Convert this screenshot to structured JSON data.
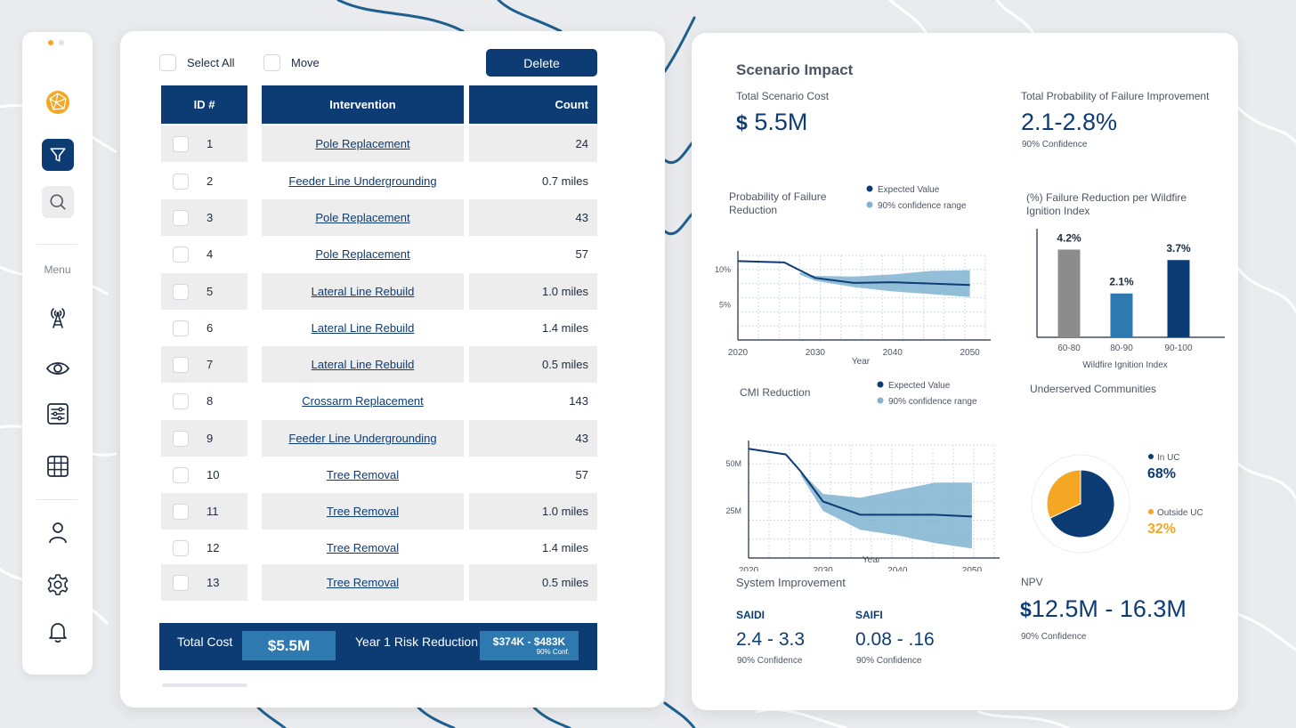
{
  "sidebar": {
    "menu_label": "Menu",
    "window_dot_colors": [
      "#f5a623",
      "#e8e8e8"
    ],
    "icons": [
      "logo-icon",
      "filter-icon",
      "search-icon",
      "antenna-icon",
      "eye-icon",
      "sliders-icon",
      "grid-icon",
      "user-icon",
      "gear-icon",
      "bell-icon"
    ]
  },
  "toolbar": {
    "select_all_label": "Select All",
    "move_label": "Move",
    "delete_label": "Delete"
  },
  "table": {
    "headers": {
      "id": "ID #",
      "intervention": "Intervention",
      "count": "Count"
    },
    "rows": [
      {
        "id": "1",
        "intervention": "Pole Replacement",
        "count": "24"
      },
      {
        "id": "2",
        "intervention": "Feeder Line Undergrounding",
        "count": "0.7 miles"
      },
      {
        "id": "3",
        "intervention": "Pole Replacement",
        "count": "43"
      },
      {
        "id": "4",
        "intervention": "Pole Replacement",
        "count": "57"
      },
      {
        "id": "5",
        "intervention": "Lateral Line Rebuild",
        "count": "1.0 miles"
      },
      {
        "id": "6",
        "intervention": "Lateral Line Rebuild",
        "count": "1.4 miles"
      },
      {
        "id": "7",
        "intervention": "Lateral Line Rebuild",
        "count": "0.5 miles"
      },
      {
        "id": "8",
        "intervention": "Crossarm Replacement",
        "count": "143"
      },
      {
        "id": "9",
        "intervention": "Feeder Line Undergrounding",
        "count": "43"
      },
      {
        "id": "10",
        "intervention": "Tree Removal",
        "count": "57"
      },
      {
        "id": "11",
        "intervention": "Tree Removal",
        "count": "1.0 miles"
      },
      {
        "id": "12",
        "intervention": "Tree Removal",
        "count": "1.4 miles"
      },
      {
        "id": "13",
        "intervention": "Tree Removal",
        "count": "0.5 miles"
      }
    ]
  },
  "totals": {
    "total_cost_label": "Total Cost",
    "total_cost_value": "$5.5M",
    "risk_label": "Year 1 Risk Reduction",
    "risk_value": "$374K - $483K",
    "risk_conf": "90% Conf."
  },
  "impact": {
    "title": "Scenario Impact",
    "total_cost_label": "Total Scenario Cost",
    "total_cost_symbol": "$",
    "total_cost_value": "5.5M",
    "pof_improvement_label": "Total Probability of Failure Improvement",
    "pof_improvement_value": "2.1-2.8%",
    "pof_improvement_conf": "90% Confidence",
    "system_improvement_label": "System Improvement",
    "saidi_label": "SAIDI",
    "saidi_value": "2.4 - 3.3",
    "saidi_conf": "90% Confidence",
    "saifi_label": "SAIFI",
    "saifi_value": "0.08 - .16",
    "saifi_conf": "90% Confidence",
    "npv_label": "NPV",
    "npv_symbol": "$",
    "npv_value": "12.5M - 16.3M",
    "npv_conf": "90% Confidence"
  },
  "colors": {
    "navy": "#0d3c74",
    "light_blue": "#7fb3d0",
    "mid_blue": "#2e7ab0",
    "gray_bar": "#8c8c8c",
    "orange": "#f5a623",
    "map_road": "#1e5f8e"
  },
  "chart_data": [
    {
      "type": "line",
      "title": "Probability of Failure Reduction",
      "xlabel": "Year",
      "ylabel": "",
      "x_ticks": [
        "2020",
        "2030",
        "2040",
        "2050"
      ],
      "y_ticks": [
        "10%",
        "5%"
      ],
      "xlim": [
        2020,
        2052
      ],
      "ylim": [
        0,
        12
      ],
      "legend": [
        "Expected Value",
        "90% confidence range"
      ],
      "series": [
        {
          "name": "Expected Value",
          "x": [
            2020,
            2026,
            2030,
            2035,
            2040,
            2045,
            2050
          ],
          "y": [
            11.2,
            11.0,
            8.8,
            8.1,
            8.2,
            8.0,
            7.8
          ]
        }
      ],
      "band": {
        "name": "90% confidence range",
        "x": [
          2028,
          2030,
          2035,
          2040,
          2045,
          2050
        ],
        "upper": [
          9.6,
          9.1,
          9.0,
          9.3,
          9.8,
          9.9
        ],
        "lower": [
          9.3,
          8.4,
          7.5,
          6.9,
          6.5,
          6.1
        ]
      }
    },
    {
      "type": "bar",
      "title": "(%) Failure Reduction per Wildfire Ignition Index",
      "xlabel": "Wildfire Ignition Index",
      "ylabel": "",
      "categories": [
        "60-80",
        "80-90",
        "90-100"
      ],
      "values": [
        4.2,
        2.1,
        3.7
      ],
      "labels": [
        "4.2%",
        "2.1%",
        "3.7%"
      ],
      "bar_colors": [
        "#8c8c8c",
        "#2e7ab0",
        "#0d3c74"
      ],
      "ylim": [
        0,
        5.2
      ]
    },
    {
      "type": "line",
      "title": "CMI Reduction",
      "xlabel": "Year",
      "ylabel": "",
      "x_ticks": [
        "2020",
        "2030",
        "2040",
        "2050"
      ],
      "y_ticks": [
        "50M",
        "25M"
      ],
      "xlim": [
        2020,
        2053
      ],
      "ylim": [
        0,
        60
      ],
      "legend": [
        "Expected Value",
        "90% confidence range"
      ],
      "series": [
        {
          "name": "Expected Value",
          "x": [
            2020,
            2025,
            2027,
            2030,
            2035,
            2040,
            2045,
            2050
          ],
          "y": [
            58,
            55,
            46,
            30,
            23,
            23,
            23,
            22
          ]
        }
      ],
      "band": {
        "name": "90% confidence range",
        "x": [
          2027,
          2030,
          2035,
          2040,
          2045,
          2050
        ],
        "upper": [
          46,
          34,
          32,
          36,
          40,
          40
        ],
        "lower": [
          44,
          25,
          15,
          12,
          8,
          5
        ]
      }
    },
    {
      "type": "pie",
      "title": "Underserved Communities",
      "labels": [
        "In UC",
        "Outside UC"
      ],
      "values": [
        68,
        32
      ],
      "value_labels": [
        "68%",
        "32%"
      ],
      "colors": [
        "#0d3c74",
        "#f5a623"
      ]
    }
  ]
}
